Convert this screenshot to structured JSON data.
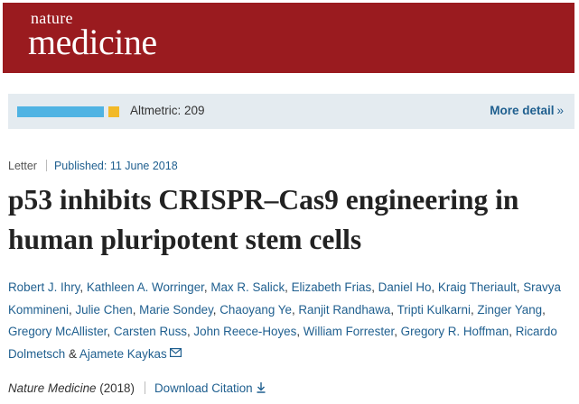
{
  "masthead": {
    "logo_top": "nature",
    "logo_bottom": "medicine",
    "bg_color": "#9a1b1f"
  },
  "altmetric": {
    "label": "Altmetric: 209",
    "more_detail_label": "More detail",
    "more_detail_icon": "double-chevron-right-icon",
    "bar_colors": [
      "#4fb3e3",
      "#f2b928"
    ]
  },
  "article": {
    "type": "Letter",
    "published": "Published: 11 June 2018",
    "title": "p53 inhibits CRISPR–Cas9 engineering in human pluripotent stem cells",
    "authors": [
      "Robert J. Ihry",
      "Kathleen A. Worringer",
      "Max R. Salick",
      "Elizabeth Frias",
      "Daniel Ho",
      "Kraig Theriault",
      "Sravya Kommineni",
      "Julie Chen",
      "Marie Sondey",
      "Chaoyang Ye",
      "Ranjit Randhawa",
      "Tripti Kulkarni",
      "Zinger Yang",
      "Gregory McAllister",
      "Carsten Russ",
      "John Reece-Hoyes",
      "William Forrester",
      "Gregory R. Hoffman",
      "Ricardo Dolmetsch",
      "Ajamete Kaykas"
    ],
    "author_separator": ", ",
    "last_author_separator": " & ",
    "contact_icon": "envelope-icon",
    "journal": "Nature Medicine",
    "year": " (2018)",
    "download_citation_label": "Download Citation",
    "download_icon": "download-icon"
  },
  "colors": {
    "link": "#1f5f8f",
    "text": "#222222"
  }
}
